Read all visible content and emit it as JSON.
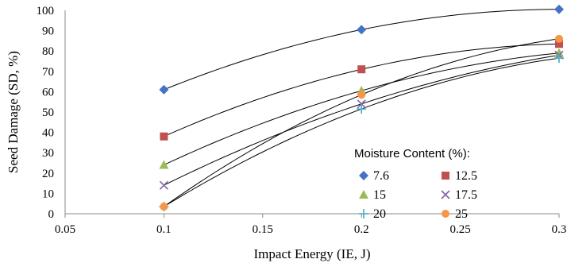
{
  "chart_data": {
    "type": "scatter",
    "xlabel": "Impact Energy (IE, J)",
    "ylabel": "Seed Damage (SD, %)",
    "xlim": [
      0.05,
      0.3
    ],
    "ylim": [
      0,
      100
    ],
    "x_ticks": [
      "0.05",
      "0.1",
      "0.15",
      "0.2",
      "0.25",
      "0.3"
    ],
    "y_ticks": [
      "0",
      "10",
      "20",
      "30",
      "40",
      "50",
      "60",
      "70",
      "80",
      "90",
      "100"
    ],
    "trendlines": "polynomial",
    "grid": false,
    "legend": {
      "title": "Moisture Content (%):",
      "placement": "right"
    },
    "series": [
      {
        "name": "7.6",
        "marker": "diamond",
        "color": "#4472C4",
        "x": [
          0.1,
          0.2,
          0.3
        ],
        "y": [
          61,
          90.5,
          100.5
        ]
      },
      {
        "name": "12.5",
        "marker": "square",
        "color": "#C0504D",
        "x": [
          0.1,
          0.2,
          0.3
        ],
        "y": [
          38,
          71,
          83.5
        ]
      },
      {
        "name": "15",
        "marker": "triangle",
        "color": "#9BBB59",
        "x": [
          0.1,
          0.2,
          0.3
        ],
        "y": [
          24,
          60.5,
          79
        ]
      },
      {
        "name": "17.5",
        "marker": "x",
        "color": "#8064A2",
        "x": [
          0.1,
          0.2,
          0.3
        ],
        "y": [
          14,
          54,
          78
        ]
      },
      {
        "name": "20",
        "marker": "plus",
        "color": "#4BACC6",
        "x": [
          0.1,
          0.2,
          0.3
        ],
        "y": [
          3.5,
          51.5,
          76.5
        ]
      },
      {
        "name": "25",
        "marker": "circle",
        "color": "#F79646",
        "x": [
          0.1,
          0.2,
          0.3
        ],
        "y": [
          3.5,
          58.5,
          86
        ]
      }
    ]
  }
}
